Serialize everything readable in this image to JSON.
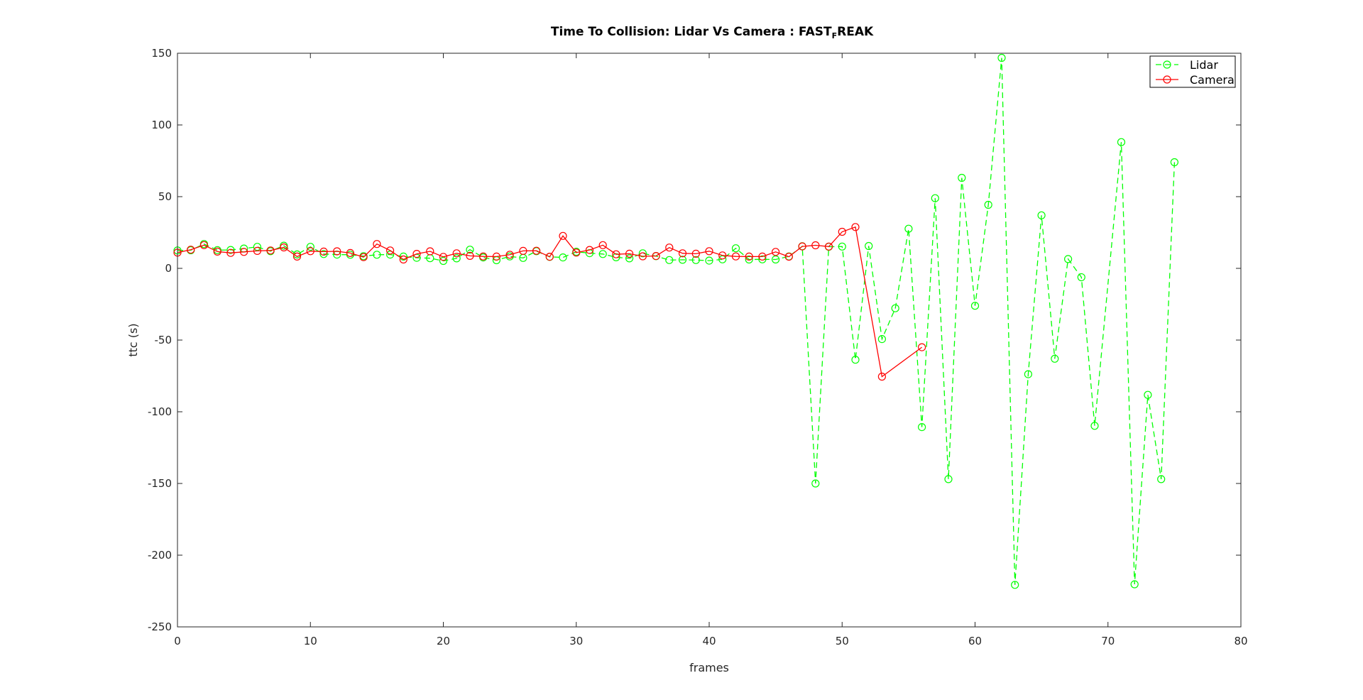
{
  "chart_data": {
    "type": "line",
    "title": "Time To Collision: Lidar Vs Camera : FAST",
    "title_subscript": "F",
    "title_suffix": "REAK",
    "xlabel": "frames",
    "ylabel": "ttc (s)",
    "xlim": [
      0,
      80
    ],
    "ylim": [
      -250,
      150
    ],
    "xticks": [
      0,
      10,
      20,
      30,
      40,
      50,
      60,
      70,
      80
    ],
    "yticks": [
      -250,
      -200,
      -150,
      -100,
      -50,
      0,
      50,
      100,
      150
    ],
    "grid": false,
    "legend_position": "top-right",
    "series": [
      {
        "name": "Lidar",
        "color": "#00ff00",
        "line_style": "dashed",
        "marker": "circle",
        "x": [
          0,
          1,
          2,
          3,
          4,
          5,
          6,
          7,
          8,
          9,
          10,
          11,
          12,
          13,
          14,
          15,
          16,
          17,
          18,
          19,
          20,
          21,
          22,
          23,
          24,
          25,
          26,
          27,
          28,
          29,
          30,
          31,
          32,
          33,
          34,
          35,
          36,
          37,
          38,
          39,
          40,
          41,
          42,
          43,
          44,
          45,
          46,
          47,
          48,
          49,
          50,
          51,
          52,
          53,
          54,
          55,
          56,
          57,
          58,
          59,
          60,
          61,
          62,
          63,
          64,
          65,
          66,
          67,
          68,
          69,
          71,
          72,
          73,
          74,
          75
        ],
        "y": [
          12.5,
          12.6,
          17,
          12.7,
          12.8,
          13.8,
          15,
          12,
          15.8,
          9.7,
          15,
          10,
          9.6,
          9.5,
          8.5,
          9.5,
          9.6,
          8.2,
          7.4,
          7.1,
          5.2,
          7,
          13,
          7.6,
          5.7,
          8.3,
          7.3,
          12,
          8,
          7.6,
          11.6,
          10.6,
          10,
          7.7,
          7,
          10.5,
          8.5,
          5.8,
          6,
          5.8,
          5.4,
          6.3,
          14,
          6.2,
          6.3,
          6.2,
          8.3,
          15.4,
          -150,
          15.1,
          15.2,
          -63.7,
          15.6,
          -49.3,
          -27.8,
          27.6,
          -110.7,
          48.9,
          -147,
          63.1,
          -26.1,
          44.3,
          146.8,
          -220.7,
          -73.8,
          37,
          -63,
          6.5,
          -6.2,
          -109.8,
          88,
          -220.3,
          -88.2,
          -147,
          74
        ]
      },
      {
        "name": "Camera",
        "color": "#ff0000",
        "line_style": "solid",
        "marker": "circle",
        "x": [
          0,
          1,
          2,
          3,
          4,
          5,
          6,
          7,
          8,
          9,
          10,
          11,
          12,
          13,
          14,
          15,
          16,
          17,
          18,
          19,
          20,
          21,
          22,
          23,
          24,
          25,
          26,
          27,
          28,
          29,
          30,
          31,
          32,
          33,
          34,
          35,
          36,
          37,
          38,
          39,
          40,
          41,
          42,
          43,
          44,
          45,
          46,
          47,
          48,
          49,
          50,
          51,
          53,
          56
        ],
        "y": [
          11,
          13,
          16.2,
          11.7,
          10.8,
          11.5,
          12.2,
          12.5,
          14.6,
          8.2,
          12,
          11.7,
          11.9,
          10.7,
          7.8,
          17,
          12.5,
          6.2,
          10.1,
          11.9,
          8,
          10.5,
          8.7,
          8.3,
          8.2,
          9.5,
          12.2,
          12.3,
          8.1,
          22.6,
          11,
          12.8,
          16.2,
          9.8,
          10.2,
          8.4,
          8.6,
          14.5,
          10.5,
          10.2,
          12,
          9,
          8.3,
          8.2,
          8.2,
          11.5,
          8.1,
          15.3,
          16.1,
          15.2,
          25.5,
          28.8,
          -75.5,
          -55
        ]
      }
    ]
  }
}
